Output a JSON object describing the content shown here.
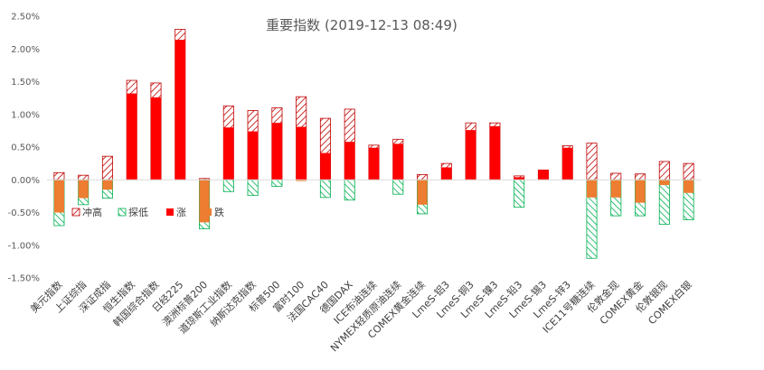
{
  "chart_data": {
    "type": "bar",
    "title": "重要指数 (2019-12-13 08:49)",
    "ylim": [
      -1.5,
      2.5
    ],
    "yticks": [
      "-1.50%",
      "-1.00%",
      "-0.50%",
      "0.00%",
      "0.50%",
      "1.00%",
      "1.50%",
      "2.00%",
      "2.50%"
    ],
    "grid": false,
    "legend_position": "inside-left",
    "categories": [
      "美元指数",
      "上证综指",
      "深证成指",
      "恒生指数",
      "韩国综合指数",
      "日经225",
      "澳洲标普200",
      "道琼斯工业指数",
      "纳斯达克指数",
      "标普500",
      "富时100",
      "法国CAC40",
      "德国DAX",
      "ICE布油连续",
      "NYMEX轻质原油连续",
      "COMEX黄金连续",
      "LmeS-铝3",
      "LmeS-铜3",
      "LmeS-镍3",
      "LmeS-铅3",
      "LmeS-锡3",
      "LmeS-锌3",
      "ICE11号糖连续",
      "伦敦金现",
      "COMEX黄金",
      "伦敦银现",
      "COMEX白银"
    ],
    "series": [
      {
        "name": "冲高",
        "values": [
          0.11,
          0.07,
          0.36,
          1.52,
          1.48,
          2.3,
          0.02,
          1.13,
          1.06,
          1.1,
          1.27,
          0.94,
          1.08,
          0.53,
          0.62,
          0.08,
          0.25,
          0.87,
          0.87,
          0.06,
          0.15,
          0.52,
          0.56,
          0.1,
          0.09,
          0.28,
          0.25
        ]
      },
      {
        "name": "探低",
        "values": [
          -0.7,
          -0.38,
          -0.28,
          0.0,
          0.0,
          0.0,
          -0.75,
          -0.18,
          -0.24,
          -0.1,
          0.0,
          -0.27,
          -0.31,
          0.0,
          -0.22,
          -0.52,
          0.0,
          0.0,
          0.0,
          -0.42,
          0.0,
          0.0,
          -1.2,
          -0.55,
          -0.55,
          -0.68,
          -0.61
        ]
      },
      {
        "name": "涨",
        "values": [
          0,
          0,
          0,
          1.32,
          1.26,
          2.14,
          0,
          0.8,
          0.74,
          0.87,
          0.81,
          0.41,
          0.58,
          0.49,
          0.55,
          0,
          0.19,
          0.76,
          0.82,
          0.04,
          0.15,
          0.49,
          0,
          0,
          0,
          0,
          0
        ]
      },
      {
        "name": "跌",
        "values": [
          -0.5,
          -0.28,
          -0.15,
          0,
          0,
          0,
          -0.65,
          0,
          0,
          0,
          -0.02,
          0,
          0,
          0,
          0,
          -0.38,
          0,
          0,
          0,
          0,
          0,
          0,
          -0.27,
          -0.27,
          -0.35,
          -0.08,
          -0.2
        ]
      }
    ],
    "colors": {
      "rise": "#ff0000",
      "fall": "#ed7d31",
      "high_hatch": "#c00000",
      "low_hatch": "#00b050",
      "axis": "#d9d9d9",
      "text": "#595959"
    }
  }
}
